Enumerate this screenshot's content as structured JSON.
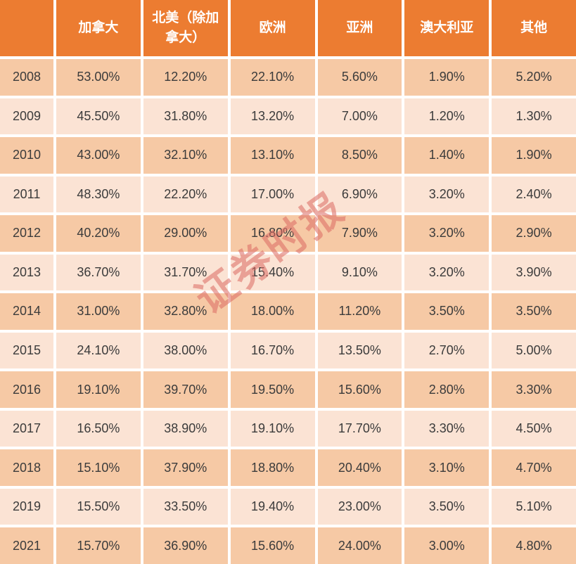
{
  "chart_data": {
    "type": "table",
    "corner_label": "",
    "columns": [
      "加拿大",
      "北美（除加拿大）",
      "欧洲",
      "亚洲",
      "澳大利亚",
      "其他"
    ],
    "rows": [
      {
        "year": "2008",
        "values": [
          "53.00%",
          "12.20%",
          "22.10%",
          "5.60%",
          "1.90%",
          "5.20%"
        ]
      },
      {
        "year": "2009",
        "values": [
          "45.50%",
          "31.80%",
          "13.20%",
          "7.00%",
          "1.20%",
          "1.30%"
        ]
      },
      {
        "year": "2010",
        "values": [
          "43.00%",
          "32.10%",
          "13.10%",
          "8.50%",
          "1.40%",
          "1.90%"
        ]
      },
      {
        "year": "2011",
        "values": [
          "48.30%",
          "22.20%",
          "17.00%",
          "6.90%",
          "3.20%",
          "2.40%"
        ]
      },
      {
        "year": "2012",
        "values": [
          "40.20%",
          "29.00%",
          "16.80%",
          "7.90%",
          "3.20%",
          "2.90%"
        ]
      },
      {
        "year": "2013",
        "values": [
          "36.70%",
          "31.70%",
          "15.40%",
          "9.10%",
          "3.20%",
          "3.90%"
        ]
      },
      {
        "year": "2014",
        "values": [
          "31.00%",
          "32.80%",
          "18.00%",
          "11.20%",
          "3.50%",
          "3.50%"
        ]
      },
      {
        "year": "2015",
        "values": [
          "24.10%",
          "38.00%",
          "16.70%",
          "13.50%",
          "2.70%",
          "5.00%"
        ]
      },
      {
        "year": "2016",
        "values": [
          "19.10%",
          "39.70%",
          "19.50%",
          "15.60%",
          "2.80%",
          "3.30%"
        ]
      },
      {
        "year": "2017",
        "values": [
          "16.50%",
          "38.90%",
          "19.10%",
          "17.70%",
          "3.30%",
          "4.50%"
        ]
      },
      {
        "year": "2018",
        "values": [
          "15.10%",
          "37.90%",
          "18.80%",
          "20.40%",
          "3.10%",
          "4.70%"
        ]
      },
      {
        "year": "2019",
        "values": [
          "15.50%",
          "33.50%",
          "19.40%",
          "23.00%",
          "3.50%",
          "5.10%"
        ]
      },
      {
        "year": "2021",
        "values": [
          "15.70%",
          "36.90%",
          "15.60%",
          "24.00%",
          "3.00%",
          "4.80%"
        ]
      }
    ]
  },
  "watermark": {
    "text": "证券时报"
  },
  "colors": {
    "header_bg": "#EC7C31",
    "header_text": "#FFFFFF",
    "row_dark": "#F6C9A5",
    "row_light": "#FBE3D4",
    "gridline": "#FFFFFF",
    "cell_text": "#3B3B3B",
    "watermark": "#DC6A62"
  }
}
